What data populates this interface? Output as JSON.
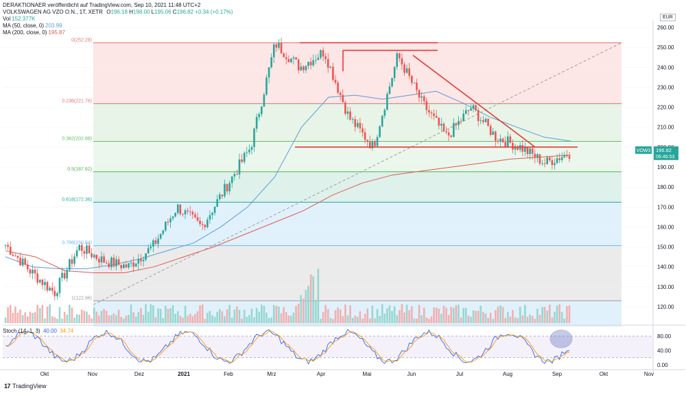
{
  "header": {
    "line1": "DERAKTIONAER veröffentlicht auf TradingView.com, Sep 10, 2021 11:48 UTC+2",
    "symbol_line": "VOLKSWAGEN AG VZO O.N., 1T, XETR",
    "ohlc": {
      "o_label": "O",
      "o": "196.18",
      "h_label": "H",
      "h": "198.00",
      "l_label": "L",
      "l": "195.06",
      "c_label": "C",
      "c": "196.82",
      "chg": "+0.34 (+0.17%)"
    },
    "vol_label": "Vol",
    "vol_value": "152.377K",
    "ma50_label": "MA (50, close, 0)",
    "ma50_value": "203.99",
    "ma200_label": "MA (200, close, 0)",
    "ma200_value": "195.87",
    "stoch_label": "Stoch (14, 1, 3)",
    "stoch_k": "40.00",
    "stoch_d": "34.74"
  },
  "currency_button": "EUR",
  "footer_brand": "TradingView",
  "colors": {
    "up": "#26a69a",
    "down": "#ef5350",
    "ma50": "#5b9bd5",
    "ma200": "#e0574f",
    "trend": "#e53935",
    "grid": "#eef0f3",
    "stoch_k": "#2962ff",
    "stoch_d": "#ff9800"
  },
  "chart_data": {
    "type": "candlestick",
    "title": "VOLKSWAGEN AG VZO O.N., 1T, XETR",
    "price_axis": {
      "min": 110,
      "max": 260,
      "ticks": [
        120,
        130,
        140,
        150,
        160,
        170,
        180,
        190,
        200,
        210,
        220,
        230,
        240,
        250,
        260
      ],
      "unit": "EUR"
    },
    "x_axis_labels": [
      "Okt",
      "Nov",
      "Dez",
      "2021",
      "Feb",
      "Mrz",
      "Apr",
      "Mai",
      "Jun",
      "Jul",
      "Aug",
      "Sep",
      "Okt",
      "Nov"
    ],
    "last_price": {
      "symbol": "VOW3",
      "value": "196.82",
      "countdown": "06:46:53"
    },
    "fibonacci": [
      {
        "level": "0",
        "price": 252.28,
        "label": "0(252.28)"
      },
      {
        "level": "0.236",
        "price": 221.76,
        "label": "0.236(221.76)"
      },
      {
        "level": "0.382",
        "price": 202.88,
        "label": "0.382(202.88)"
      },
      {
        "level": "0.5",
        "price": 187.62,
        "label": "0.5(187.62)"
      },
      {
        "level": "0.618",
        "price": 172.36,
        "label": "0.618(172.36)"
      },
      {
        "level": "0.786",
        "price": 150.64,
        "label": "0.786(150.64)"
      },
      {
        "level": "1",
        "price": 122.96,
        "label": "1(122.96)"
      }
    ],
    "trendlines": [
      {
        "name": "support",
        "from": [
          "Mrz",
          200
        ],
        "to": [
          "Sep",
          200
        ]
      },
      {
        "name": "top-left",
        "from": [
          "Mrz",
          252.3
        ],
        "to": [
          "Jun",
          252.3
        ]
      },
      {
        "name": "top-middle",
        "from": [
          "Apr",
          248.5
        ],
        "to": [
          "Jun",
          248.5
        ]
      },
      {
        "name": "descending",
        "from": [
          "Jun",
          246
        ],
        "to": [
          "Aug",
          200
        ]
      }
    ],
    "price_path": [
      {
        "x": "Sep",
        "close": 151
      },
      {
        "x": "Okt",
        "close": 138
      },
      {
        "x": "Nov",
        "close": 127
      },
      {
        "x": "Nov",
        "close": 150
      },
      {
        "x": "Dez",
        "close": 143
      },
      {
        "x": "Dez",
        "close": 140
      },
      {
        "x": "2021",
        "close": 150
      },
      {
        "x": "Feb",
        "close": 170
      },
      {
        "x": "Feb",
        "close": 160
      },
      {
        "x": "Mrz",
        "close": 180
      },
      {
        "x": "Mrz",
        "close": 200
      },
      {
        "x": "Mrz",
        "close": 252
      },
      {
        "x": "Apr",
        "close": 240
      },
      {
        "x": "Apr",
        "close": 248
      },
      {
        "x": "Mai",
        "close": 215
      },
      {
        "x": "Mai",
        "close": 200
      },
      {
        "x": "Jun",
        "close": 246
      },
      {
        "x": "Jun",
        "close": 222
      },
      {
        "x": "Jul",
        "close": 205
      },
      {
        "x": "Jul",
        "close": 220
      },
      {
        "x": "Aug",
        "close": 205
      },
      {
        "x": "Aug",
        "close": 200
      },
      {
        "x": "Sep",
        "close": 192
      },
      {
        "x": "Sep",
        "close": 197
      }
    ],
    "ma50_path": [
      145,
      140,
      139,
      139,
      141,
      144,
      148,
      152,
      160,
      170,
      185,
      210,
      225,
      226,
      224,
      226,
      228,
      222,
      215,
      210,
      205,
      203
    ],
    "ma200_path": [
      148,
      145,
      138,
      137,
      137,
      140,
      145,
      150,
      156,
      162,
      168,
      176,
      182,
      186,
      188,
      190,
      192,
      194,
      195,
      196
    ],
    "stochastic": {
      "axis_ticks": [
        0,
        40,
        80
      ],
      "k_last": 40.0,
      "d_last": 34.74,
      "upper_band": 80,
      "lower_band": 20
    }
  }
}
